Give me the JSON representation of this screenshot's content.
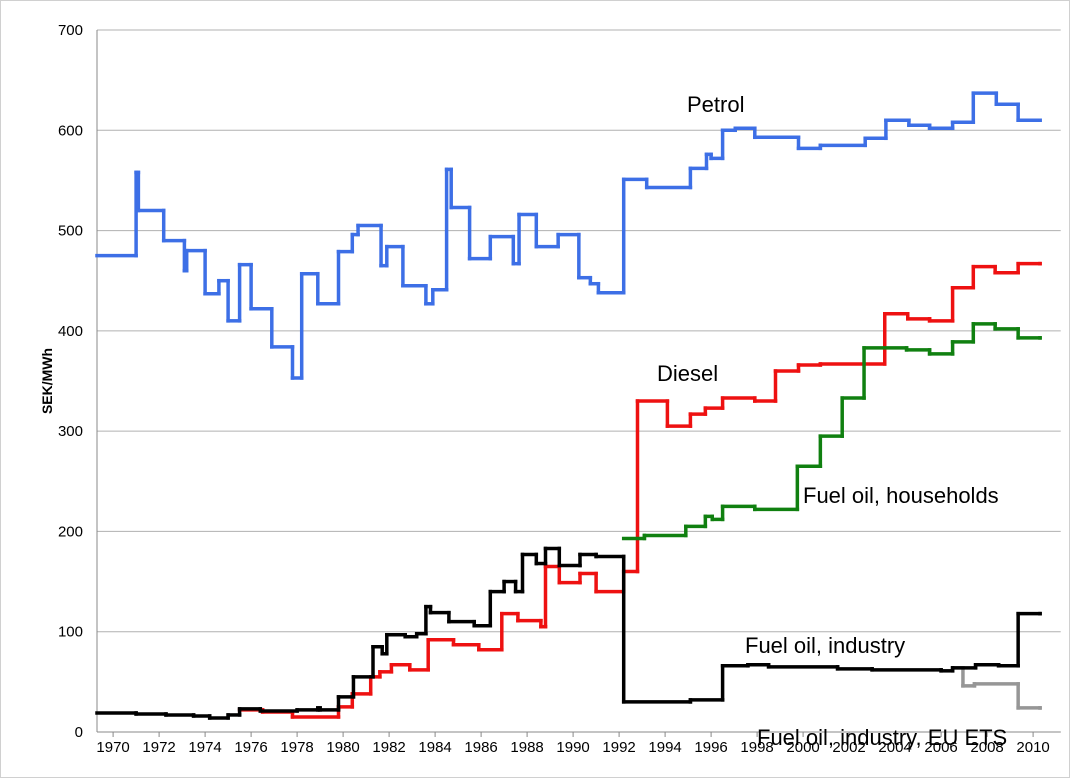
{
  "chart_data": {
    "type": "step-line",
    "y_label": "SEK/MWh",
    "xlim": [
      1969.3,
      2011.2
    ],
    "ylim": [
      0,
      700
    ],
    "yticks": [
      0,
      100,
      200,
      300,
      400,
      500,
      600,
      700
    ],
    "xticks": [
      1970,
      1972,
      1974,
      1976,
      1978,
      1980,
      1982,
      1984,
      1986,
      1988,
      1990,
      1992,
      1994,
      1996,
      1998,
      2000,
      2002,
      2004,
      2006,
      2008,
      2010
    ],
    "grid": true,
    "series": [
      {
        "name": "Fuel oil, industry, EU ETS",
        "color": "#969696",
        "x": [
          2006.6,
          2006.95,
          2007.45,
          2009.35,
          2010.3
        ],
        "values": [
          64,
          46,
          48,
          24,
          24
        ]
      },
      {
        "name": "Petrol",
        "color": "#3d6fe6",
        "x": [
          1969.3,
          1971.0,
          1971.1,
          1972.2,
          1973.1,
          1973.2,
          1974.0,
          1974.6,
          1975.0,
          1975.5,
          1976.0,
          1976.9,
          1977.8,
          1978.2,
          1978.9,
          1979.8,
          1980.4,
          1980.65,
          1981.65,
          1981.9,
          1982.6,
          1983.6,
          1983.9,
          1984.5,
          1984.7,
          1985.5,
          1986.4,
          1987.4,
          1987.65,
          1988.4,
          1989.35,
          1990.25,
          1990.75,
          1991.1,
          1992.2,
          1993.2,
          1995.1,
          1995.8,
          1996.0,
          1996.5,
          1997.05,
          1997.9,
          1999.8,
          2000.75,
          2002.7,
          2003.6,
          2004.6,
          2005.5,
          2006.5,
          2007.4,
          2008.4,
          2009.35,
          2010.3
        ],
        "values": [
          475,
          558,
          520,
          490,
          460,
          480,
          437,
          450,
          410,
          466,
          422,
          384,
          353,
          457,
          427,
          479,
          496,
          505,
          465,
          484,
          445,
          427,
          441,
          561,
          523,
          472,
          494,
          467,
          516,
          484,
          496,
          453,
          447,
          438,
          551,
          543,
          562,
          576,
          572,
          600,
          602,
          593,
          582,
          585,
          592,
          610,
          605,
          602,
          608,
          637,
          626,
          610,
          610
        ]
      },
      {
        "name": "Diesel",
        "color": "#ee1111",
        "x": [
          1975.5,
          1976.5,
          1977.8,
          1979.8,
          1980.4,
          1981.2,
          1981.6,
          1982.1,
          1982.9,
          1983.7,
          1984.8,
          1985.9,
          1986.9,
          1987.6,
          1988.6,
          1988.8,
          1989.4,
          1990.3,
          1991.0,
          1992.2,
          1992.8,
          1994.1,
          1995.1,
          1995.75,
          1996.5,
          1997.9,
          1998.8,
          1999.8,
          2000.75,
          2003.55,
          2004.55,
          2005.5,
          2006.5,
          2007.4,
          2008.35,
          2009.35,
          2010.3
        ],
        "values": [
          22,
          20,
          15,
          25,
          38,
          55,
          60,
          67,
          62,
          92,
          87,
          82,
          118,
          111,
          105,
          165,
          149,
          158,
          140,
          160,
          330,
          305,
          317,
          323,
          333,
          330,
          360,
          366,
          367,
          417,
          412,
          410,
          443,
          464,
          458,
          467,
          467
        ]
      },
      {
        "name": "Fuel oil, households",
        "color": "#108010",
        "x": [
          1992.2,
          1993.1,
          1994.9,
          1995.75,
          1996.05,
          1996.5,
          1997.9,
          1999.75,
          2000.75,
          2001.7,
          2002.65,
          2004.5,
          2005.5,
          2006.5,
          2007.4,
          2008.35,
          2009.35,
          2010.3
        ],
        "values": [
          193,
          196,
          205,
          215,
          212,
          225,
          222,
          265,
          295,
          333,
          383,
          381,
          377,
          389,
          407,
          402,
          393,
          393
        ]
      },
      {
        "name": "Fuel oil, industry",
        "color": "#000000",
        "x": [
          1969.3,
          1971.0,
          1972.3,
          1973.5,
          1974.2,
          1975.0,
          1975.5,
          1976.4,
          1978.0,
          1978.9,
          1979.0,
          1979.8,
          1980.45,
          1981.3,
          1981.7,
          1981.9,
          1982.7,
          1983.2,
          1983.6,
          1983.8,
          1984.6,
          1985.7,
          1986.4,
          1987.0,
          1987.5,
          1987.8,
          1988.4,
          1988.8,
          1989.4,
          1990.3,
          1991.0,
          1992.2,
          1995.1,
          1996.5,
          1997.6,
          1998.5,
          2001.5,
          2003.0,
          2006.0,
          2006.5,
          2007.5,
          2008.5,
          2009.35,
          2010.3
        ],
        "values": [
          19,
          18,
          17,
          16,
          14,
          17,
          23,
          21,
          22,
          24,
          22,
          35,
          55,
          85,
          78,
          97,
          95,
          98,
          125,
          119,
          110,
          106,
          140,
          150,
          140,
          177,
          168,
          183,
          166,
          177,
          175,
          30,
          32,
          66,
          67,
          65,
          63,
          62,
          61,
          64,
          67,
          66,
          118,
          118
        ]
      }
    ]
  }
}
